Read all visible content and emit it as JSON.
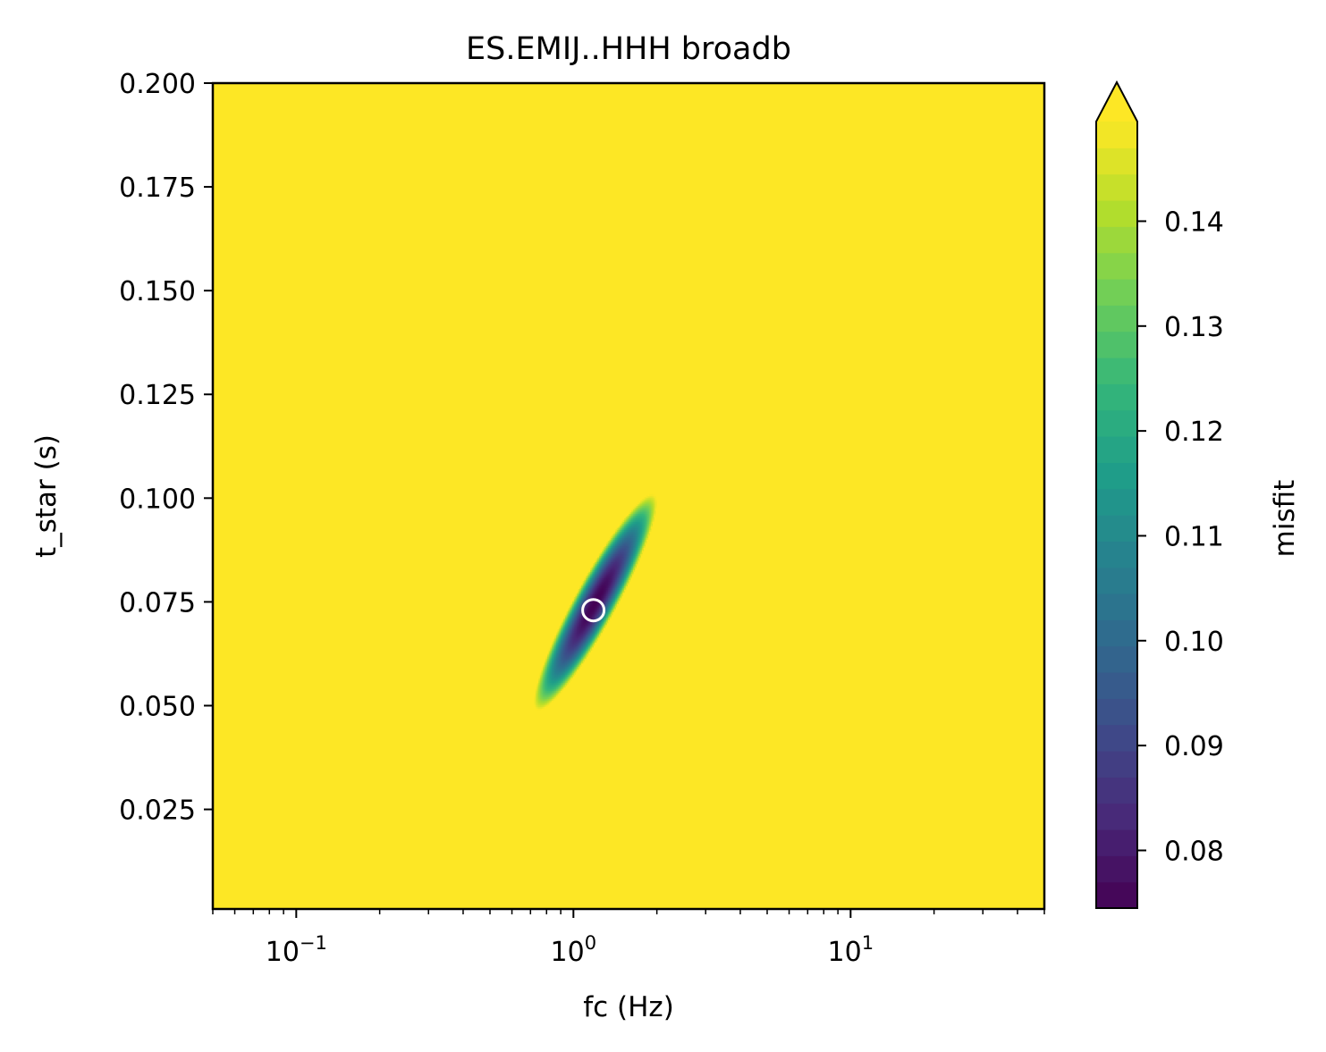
{
  "chart_data": {
    "type": "heatmap",
    "title": "ES.EMIJ..HHH broadb",
    "xlabel": "fc (Hz)",
    "ylabel": "t_star (s)",
    "xscale": "log",
    "xlim": [
      0.05,
      50
    ],
    "ylim": [
      0.001,
      0.2
    ],
    "x_ticks": [
      {
        "value": 0.1,
        "base": "10",
        "exp": "−1"
      },
      {
        "value": 1,
        "base": "10",
        "exp": "0"
      },
      {
        "value": 10,
        "base": "10",
        "exp": "1"
      }
    ],
    "y_ticks": [
      {
        "value": 0.025,
        "label": "0.025"
      },
      {
        "value": 0.05,
        "label": "0.050"
      },
      {
        "value": 0.075,
        "label": "0.075"
      },
      {
        "value": 0.1,
        "label": "0.100"
      },
      {
        "value": 0.125,
        "label": "0.125"
      },
      {
        "value": 0.15,
        "label": "0.150"
      },
      {
        "value": 0.175,
        "label": "0.175"
      },
      {
        "value": 0.2,
        "label": "0.200"
      }
    ],
    "colorbar": {
      "label": "misfit",
      "colormap": "viridis",
      "range": [
        0.0745,
        0.1495
      ],
      "extend": "max",
      "ticks": [
        {
          "value": 0.08,
          "label": "0.08"
        },
        {
          "value": 0.09,
          "label": "0.09"
        },
        {
          "value": 0.1,
          "label": "0.10"
        },
        {
          "value": 0.11,
          "label": "0.11"
        },
        {
          "value": 0.12,
          "label": "0.12"
        },
        {
          "value": 0.13,
          "label": "0.13"
        },
        {
          "value": 0.14,
          "label": "0.14"
        }
      ]
    },
    "misfit_minimum": {
      "fc": 1.18,
      "t_star": 0.073,
      "value": 0.0745
    },
    "misfit_valley": {
      "center_fc": 1.2,
      "center_t_star": 0.075,
      "t_star_extent": [
        0.049,
        0.101
      ],
      "fc_extent": [
        0.76,
        1.95
      ]
    },
    "saturated_value": 0.15,
    "background_color": "#fde725"
  }
}
